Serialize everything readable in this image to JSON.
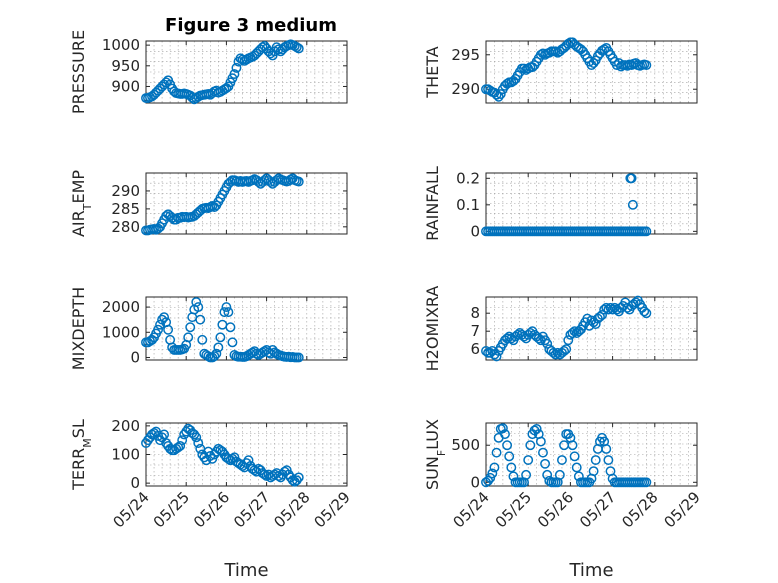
{
  "figure": {
    "title": "Figure 3 medium",
    "marker_color": "#0072BD",
    "x_tick_labels": [
      "05/24",
      "05/25",
      "05/26",
      "05/27",
      "05/28",
      "05/29"
    ],
    "x_label": "Time"
  },
  "chart_data": [
    {
      "type": "scatter",
      "ylabel": "PRESSURE",
      "xlim": [
        0,
        5
      ],
      "ylim": [
        860,
        1010
      ],
      "yticks": [
        900,
        950,
        1000
      ],
      "x_ticks": [
        0,
        1,
        2,
        3,
        4,
        5
      ],
      "grid": true,
      "x": [
        0.0,
        0.05,
        0.1,
        0.15,
        0.2,
        0.25,
        0.3,
        0.35,
        0.4,
        0.45,
        0.5,
        0.55,
        0.6,
        0.65,
        0.7,
        0.75,
        0.8,
        0.85,
        0.9,
        0.95,
        1.0,
        1.05,
        1.1,
        1.15,
        1.2,
        1.25,
        1.3,
        1.35,
        1.4,
        1.45,
        1.5,
        1.55,
        1.6,
        1.65,
        1.7,
        1.75,
        1.8,
        1.85,
        1.9,
        1.95,
        2.0,
        2.05,
        2.1,
        2.15,
        2.2,
        2.25,
        2.3,
        2.35,
        2.4,
        2.45,
        2.5,
        2.55,
        2.6,
        2.65,
        2.7,
        2.75,
        2.8,
        2.85,
        2.9,
        2.95,
        3.0,
        3.05,
        3.1,
        3.15,
        3.2,
        3.25,
        3.3,
        3.35,
        3.4,
        3.45,
        3.5,
        3.55,
        3.6,
        3.65,
        3.7,
        3.75,
        3.8
      ],
      "y": [
        872,
        872,
        874,
        876,
        880,
        885,
        890,
        895,
        900,
        905,
        910,
        915,
        905,
        895,
        888,
        884,
        883,
        882,
        882,
        883,
        882,
        880,
        878,
        873,
        869,
        872,
        875,
        878,
        879,
        880,
        881,
        882,
        880,
        884,
        888,
        890,
        885,
        887,
        890,
        893,
        896,
        900,
        910,
        920,
        930,
        945,
        960,
        968,
        965,
        962,
        965,
        968,
        970,
        972,
        975,
        980,
        985,
        990,
        995,
        998,
        992,
        985,
        980,
        975,
        985,
        995,
        990,
        985,
        990,
        995,
        998,
        1000,
        1002,
        1000,
        998,
        995,
        992
      ]
    },
    {
      "type": "scatter",
      "ylabel": "THETA",
      "xlim": [
        0,
        5
      ],
      "ylim": [
        288,
        297
      ],
      "yticks": [
        290,
        295
      ],
      "x_ticks": [
        0,
        1,
        2,
        3,
        4,
        5
      ],
      "grid": true,
      "x": [
        0.0,
        0.05,
        0.1,
        0.15,
        0.2,
        0.25,
        0.3,
        0.35,
        0.4,
        0.45,
        0.5,
        0.55,
        0.6,
        0.65,
        0.7,
        0.75,
        0.8,
        0.85,
        0.9,
        0.95,
        1.0,
        1.05,
        1.1,
        1.15,
        1.2,
        1.25,
        1.3,
        1.35,
        1.4,
        1.45,
        1.5,
        1.55,
        1.6,
        1.65,
        1.7,
        1.75,
        1.8,
        1.85,
        1.9,
        1.95,
        2.0,
        2.05,
        2.1,
        2.15,
        2.2,
        2.25,
        2.3,
        2.35,
        2.4,
        2.45,
        2.5,
        2.55,
        2.6,
        2.65,
        2.7,
        2.75,
        2.8,
        2.85,
        2.9,
        2.95,
        3.0,
        3.05,
        3.1,
        3.15,
        3.2,
        3.25,
        3.3,
        3.35,
        3.4,
        3.45,
        3.5,
        3.55,
        3.6,
        3.65,
        3.7,
        3.75,
        3.8
      ],
      "y": [
        290,
        290,
        289.8,
        289.6,
        289.5,
        289.2,
        288.9,
        289.3,
        290.0,
        290.5,
        290.8,
        291.0,
        291.0,
        291.2,
        291.5,
        292.0,
        292.5,
        293.0,
        293.0,
        292.8,
        293.0,
        293.2,
        293.2,
        293.5,
        294.0,
        294.5,
        295.0,
        295.2,
        295.0,
        295.2,
        295.3,
        295.5,
        295.5,
        295.5,
        295.3,
        295.5,
        295.8,
        296.0,
        296.3,
        296.6,
        296.8,
        296.8,
        296.5,
        296.2,
        296.0,
        295.8,
        295.5,
        295.0,
        294.5,
        294.0,
        293.5,
        293.8,
        294.2,
        294.8,
        295.2,
        295.6,
        295.8,
        296.0,
        295.5,
        295.0,
        294.5,
        294.0,
        293.5,
        293.8,
        293.3,
        293.5,
        293.5,
        293.4,
        293.6,
        293.5,
        293.7,
        293.8,
        293.5,
        293.4,
        293.5,
        293.6,
        293.5
      ]
    },
    {
      "type": "scatter",
      "ylabel": "AIR_TEMP",
      "xlim": [
        0,
        5
      ],
      "ylim": [
        278,
        295
      ],
      "yticks": [
        280,
        285,
        290
      ],
      "x_ticks": [
        0,
        1,
        2,
        3,
        4,
        5
      ],
      "grid": true,
      "x": [
        0.0,
        0.05,
        0.1,
        0.15,
        0.2,
        0.25,
        0.3,
        0.35,
        0.4,
        0.45,
        0.5,
        0.55,
        0.6,
        0.65,
        0.7,
        0.75,
        0.8,
        0.85,
        0.9,
        0.95,
        1.0,
        1.05,
        1.1,
        1.15,
        1.2,
        1.25,
        1.3,
        1.35,
        1.4,
        1.45,
        1.5,
        1.55,
        1.6,
        1.65,
        1.7,
        1.75,
        1.8,
        1.85,
        1.9,
        1.95,
        2.0,
        2.05,
        2.1,
        2.15,
        2.2,
        2.25,
        2.3,
        2.35,
        2.4,
        2.45,
        2.5,
        2.55,
        2.6,
        2.65,
        2.7,
        2.75,
        2.8,
        2.85,
        2.9,
        2.95,
        3.0,
        3.05,
        3.1,
        3.15,
        3.2,
        3.25,
        3.3,
        3.35,
        3.4,
        3.45,
        3.5,
        3.55,
        3.6,
        3.65,
        3.7,
        3.75,
        3.8
      ],
      "y": [
        279.0,
        279.0,
        279.2,
        279.3,
        279.4,
        279.2,
        279.5,
        280.0,
        281.0,
        282.0,
        283.0,
        283.5,
        283.0,
        282.5,
        282.0,
        282.0,
        282.5,
        282.5,
        282.8,
        282.7,
        282.8,
        282.6,
        282.7,
        282.8,
        283.0,
        283.5,
        284.0,
        284.5,
        285.0,
        285.2,
        285.3,
        285.2,
        285.5,
        285.8,
        285.5,
        286.0,
        287.0,
        288.0,
        289.0,
        290.0,
        291.0,
        292.0,
        292.5,
        293.0,
        293.0,
        292.8,
        292.5,
        292.8,
        292.5,
        292.7,
        292.8,
        292.5,
        292.8,
        293.0,
        293.3,
        293.0,
        292.5,
        292.0,
        292.5,
        293.0,
        293.5,
        293.0,
        292.5,
        292.0,
        292.5,
        293.0,
        293.5,
        293.2,
        293.0,
        292.8,
        292.6,
        292.8,
        293.2,
        293.5,
        293.0,
        292.8,
        292.6
      ]
    },
    {
      "type": "scatter",
      "ylabel": "RAINFALL",
      "xlim": [
        0,
        5
      ],
      "ylim": [
        -0.01,
        0.22
      ],
      "yticks": [
        0,
        0.1,
        0.2
      ],
      "ytick_labels": [
        "0",
        "0.1",
        "0.2"
      ],
      "x_ticks": [
        0,
        1,
        2,
        3,
        4,
        5
      ],
      "grid": true,
      "x": [
        0.0,
        0.05,
        0.1,
        0.15,
        0.2,
        0.25,
        0.3,
        0.35,
        0.4,
        0.45,
        0.5,
        0.55,
        0.6,
        0.65,
        0.7,
        0.75,
        0.8,
        0.85,
        0.9,
        0.95,
        1.0,
        1.05,
        1.1,
        1.15,
        1.2,
        1.25,
        1.3,
        1.35,
        1.4,
        1.45,
        1.5,
        1.55,
        1.6,
        1.65,
        1.7,
        1.75,
        1.8,
        1.85,
        1.9,
        1.95,
        2.0,
        2.05,
        2.1,
        2.15,
        2.2,
        2.25,
        2.3,
        2.35,
        2.4,
        2.45,
        2.5,
        2.55,
        2.6,
        2.65,
        2.7,
        2.75,
        2.8,
        2.85,
        2.9,
        2.95,
        3.0,
        3.05,
        3.1,
        3.15,
        3.2,
        3.25,
        3.3,
        3.35,
        3.4,
        3.45,
        3.5,
        3.55,
        3.6,
        3.65,
        3.7,
        3.75,
        3.8,
        3.42,
        3.45,
        3.48
      ],
      "y": [
        0,
        0,
        0,
        0,
        0,
        0,
        0,
        0,
        0,
        0,
        0,
        0,
        0,
        0,
        0,
        0,
        0,
        0,
        0,
        0,
        0,
        0,
        0,
        0,
        0,
        0,
        0,
        0,
        0,
        0,
        0,
        0,
        0,
        0,
        0,
        0,
        0,
        0,
        0,
        0,
        0,
        0,
        0,
        0,
        0,
        0,
        0,
        0,
        0,
        0,
        0,
        0,
        0,
        0,
        0,
        0,
        0,
        0,
        0,
        0,
        0,
        0,
        0,
        0,
        0,
        0,
        0,
        0,
        0,
        0,
        0,
        0,
        0,
        0,
        0,
        0,
        0,
        0.2,
        0.2,
        0.1
      ]
    },
    {
      "type": "scatter",
      "ylabel": "MIXDEPTH",
      "xlim": [
        0,
        5
      ],
      "ylim": [
        -100,
        2400
      ],
      "yticks": [
        0,
        1000,
        2000
      ],
      "x_ticks": [
        0,
        1,
        2,
        3,
        4,
        5
      ],
      "grid": true,
      "x": [
        0.0,
        0.05,
        0.1,
        0.15,
        0.2,
        0.25,
        0.3,
        0.35,
        0.4,
        0.45,
        0.5,
        0.55,
        0.6,
        0.65,
        0.7,
        0.75,
        0.8,
        0.85,
        0.9,
        0.95,
        1.0,
        1.05,
        1.1,
        1.15,
        1.2,
        1.25,
        1.3,
        1.35,
        1.4,
        1.45,
        1.5,
        1.55,
        1.6,
        1.65,
        1.7,
        1.75,
        1.8,
        1.85,
        1.9,
        1.95,
        2.0,
        2.05,
        2.1,
        2.15,
        2.2,
        2.25,
        2.3,
        2.35,
        2.4,
        2.45,
        2.5,
        2.55,
        2.6,
        2.65,
        2.7,
        2.75,
        2.8,
        2.85,
        2.9,
        2.95,
        3.0,
        3.05,
        3.1,
        3.15,
        3.2,
        3.25,
        3.3,
        3.35,
        3.4,
        3.45,
        3.5,
        3.55,
        3.6,
        3.65,
        3.7,
        3.75,
        3.8
      ],
      "y": [
        600,
        600,
        650,
        700,
        800,
        950,
        1100,
        1300,
        1500,
        1600,
        1400,
        1100,
        700,
        400,
        300,
        300,
        300,
        300,
        320,
        350,
        500,
        800,
        1200,
        1600,
        1900,
        2200,
        2000,
        1500,
        700,
        150,
        100,
        50,
        0,
        0,
        50,
        150,
        400,
        800,
        1300,
        1800,
        2000,
        1800,
        1200,
        600,
        100,
        50,
        30,
        30,
        20,
        20,
        50,
        100,
        150,
        200,
        250,
        150,
        100,
        150,
        200,
        250,
        300,
        200,
        150,
        300,
        200,
        150,
        100,
        80,
        50,
        30,
        20,
        30,
        10,
        20,
        0,
        0,
        0
      ]
    },
    {
      "type": "scatter",
      "ylabel": "H2OMIXRA",
      "xlim": [
        0,
        5
      ],
      "ylim": [
        5.4,
        8.9
      ],
      "yticks": [
        6,
        7,
        8
      ],
      "x_ticks": [
        0,
        1,
        2,
        3,
        4,
        5
      ],
      "grid": true,
      "x": [
        0.0,
        0.05,
        0.1,
        0.15,
        0.2,
        0.25,
        0.3,
        0.35,
        0.4,
        0.45,
        0.5,
        0.55,
        0.6,
        0.65,
        0.7,
        0.75,
        0.8,
        0.85,
        0.9,
        0.95,
        1.0,
        1.05,
        1.1,
        1.15,
        1.2,
        1.25,
        1.3,
        1.35,
        1.4,
        1.45,
        1.5,
        1.55,
        1.6,
        1.65,
        1.7,
        1.75,
        1.8,
        1.85,
        1.9,
        1.95,
        2.0,
        2.05,
        2.1,
        2.15,
        2.2,
        2.25,
        2.3,
        2.35,
        2.4,
        2.45,
        2.5,
        2.55,
        2.6,
        2.65,
        2.7,
        2.75,
        2.8,
        2.85,
        2.9,
        2.95,
        3.0,
        3.05,
        3.1,
        3.15,
        3.2,
        3.25,
        3.3,
        3.35,
        3.4,
        3.45,
        3.5,
        3.55,
        3.6,
        3.65,
        3.7,
        3.75,
        3.8
      ],
      "y": [
        5.9,
        5.8,
        5.8,
        5.9,
        5.7,
        5.6,
        5.9,
        6.1,
        6.3,
        6.5,
        6.6,
        6.7,
        6.6,
        6.5,
        6.7,
        6.8,
        6.9,
        6.8,
        6.7,
        6.6,
        6.8,
        6.9,
        7.0,
        6.8,
        6.7,
        6.6,
        6.5,
        6.7,
        6.5,
        6.3,
        6.0,
        5.9,
        5.8,
        5.7,
        5.8,
        5.7,
        5.8,
        5.9,
        6.0,
        6.5,
        6.8,
        6.9,
        7.0,
        6.9,
        7.0,
        7.1,
        7.3,
        7.5,
        7.7,
        7.3,
        7.6,
        7.5,
        7.4,
        7.7,
        7.8,
        7.9,
        8.2,
        8.3,
        8.2,
        8.3,
        8.2,
        8.3,
        8.2,
        8.1,
        8.3,
        8.4,
        8.6,
        8.3,
        8.2,
        8.4,
        8.5,
        8.6,
        8.7,
        8.5,
        8.3,
        8.1,
        8.0
      ]
    },
    {
      "type": "scatter",
      "ylabel": "TERR_MSL",
      "xlim": [
        0,
        5
      ],
      "ylim": [
        -10,
        210
      ],
      "yticks": [
        0,
        100,
        200
      ],
      "x_ticks": [
        0,
        1,
        2,
        3,
        4,
        5
      ],
      "grid": true,
      "x": [
        0.0,
        0.05,
        0.1,
        0.15,
        0.2,
        0.25,
        0.3,
        0.35,
        0.4,
        0.45,
        0.5,
        0.55,
        0.6,
        0.65,
        0.7,
        0.75,
        0.8,
        0.85,
        0.9,
        0.95,
        1.0,
        1.05,
        1.1,
        1.15,
        1.2,
        1.25,
        1.3,
        1.35,
        1.4,
        1.45,
        1.5,
        1.55,
        1.6,
        1.65,
        1.7,
        1.75,
        1.8,
        1.85,
        1.9,
        1.95,
        2.0,
        2.05,
        2.1,
        2.15,
        2.2,
        2.25,
        2.3,
        2.35,
        2.4,
        2.45,
        2.5,
        2.55,
        2.6,
        2.65,
        2.7,
        2.75,
        2.8,
        2.85,
        2.9,
        2.95,
        3.0,
        3.05,
        3.1,
        3.15,
        3.2,
        3.25,
        3.3,
        3.35,
        3.4,
        3.45,
        3.5,
        3.55,
        3.6,
        3.65,
        3.7,
        3.75,
        3.8
      ],
      "y": [
        140,
        150,
        160,
        170,
        175,
        180,
        165,
        150,
        160,
        170,
        140,
        130,
        120,
        115,
        115,
        120,
        125,
        130,
        150,
        170,
        180,
        190,
        185,
        175,
        170,
        160,
        140,
        120,
        100,
        90,
        80,
        110,
        95,
        85,
        100,
        110,
        120,
        115,
        110,
        100,
        90,
        85,
        80,
        85,
        90,
        75,
        70,
        65,
        60,
        55,
        70,
        80,
        60,
        50,
        45,
        40,
        50,
        45,
        35,
        30,
        25,
        30,
        20,
        25,
        30,
        35,
        25,
        20,
        30,
        40,
        45,
        30,
        20,
        10,
        5,
        10,
        20
      ]
    },
    {
      "type": "scatter",
      "ylabel": "SUN_FLUX",
      "xlim": [
        0,
        5
      ],
      "ylim": [
        -50,
        800
      ],
      "yticks": [
        0,
        500
      ],
      "x_ticks": [
        0,
        1,
        2,
        3,
        4,
        5
      ],
      "grid": true,
      "x": [
        0.0,
        0.05,
        0.1,
        0.15,
        0.2,
        0.25,
        0.3,
        0.35,
        0.4,
        0.45,
        0.5,
        0.55,
        0.6,
        0.65,
        0.7,
        0.75,
        0.8,
        0.85,
        0.9,
        0.95,
        1.0,
        1.05,
        1.1,
        1.15,
        1.2,
        1.25,
        1.3,
        1.35,
        1.4,
        1.45,
        1.5,
        1.55,
        1.6,
        1.65,
        1.7,
        1.75,
        1.8,
        1.85,
        1.9,
        1.95,
        2.0,
        2.05,
        2.1,
        2.15,
        2.2,
        2.25,
        2.3,
        2.35,
        2.4,
        2.45,
        2.5,
        2.55,
        2.6,
        2.65,
        2.7,
        2.75,
        2.8,
        2.85,
        2.9,
        2.95,
        3.0,
        3.05,
        3.1,
        3.15,
        3.2,
        3.25,
        3.3,
        3.35,
        3.4,
        3.45,
        3.5,
        3.55,
        3.6,
        3.65,
        3.7,
        3.75,
        3.8
      ],
      "y": [
        0,
        20,
        60,
        120,
        200,
        400,
        600,
        720,
        730,
        650,
        500,
        350,
        200,
        80,
        0,
        0,
        0,
        0,
        0,
        100,
        300,
        500,
        650,
        700,
        720,
        650,
        550,
        400,
        250,
        100,
        20,
        0,
        0,
        0,
        0,
        100,
        300,
        500,
        650,
        650,
        600,
        500,
        350,
        200,
        80,
        0,
        0,
        0,
        0,
        0,
        50,
        150,
        300,
        450,
        550,
        600,
        550,
        450,
        300,
        150,
        50,
        0,
        0,
        0,
        0,
        0,
        0,
        0,
        0,
        0,
        0,
        0,
        0,
        0,
        0,
        0,
        0
      ]
    }
  ]
}
